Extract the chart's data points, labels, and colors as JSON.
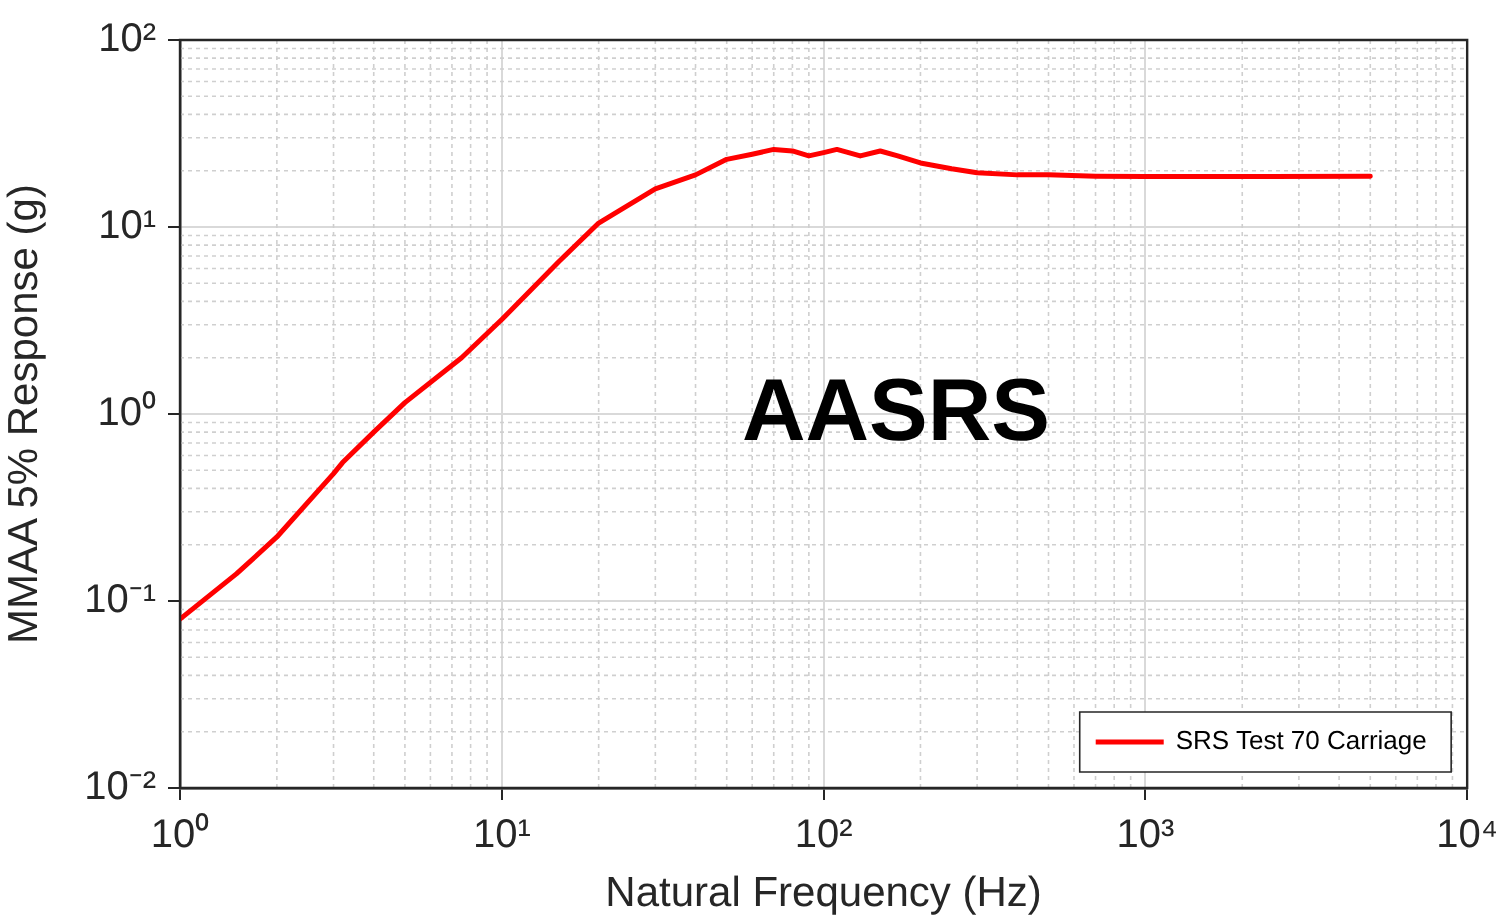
{
  "chart_data": {
    "type": "line",
    "xlabel": "Natural Frequency (Hz)",
    "ylabel": "MMAA 5% Response (g)",
    "annotations": [
      "AASRS"
    ],
    "series": [
      {
        "name": "SRS Test 70 Carriage",
        "color": "#ff0000",
        "x": [
          1,
          1.5,
          2,
          3,
          3.2,
          4,
          5,
          7.5,
          10,
          15,
          20,
          30,
          40,
          50,
          60,
          70,
          80,
          90,
          100,
          110,
          130,
          150,
          170,
          200,
          250,
          300,
          400,
          500,
          700,
          1000,
          2000,
          5000
        ],
        "values": [
          0.08,
          0.14,
          0.22,
          0.48,
          0.55,
          0.8,
          1.15,
          2.0,
          3.2,
          6.5,
          10.5,
          16,
          19,
          23,
          24.5,
          26,
          25.5,
          24,
          25,
          26,
          24,
          25.5,
          24,
          22,
          20.5,
          19.5,
          19,
          19,
          18.7,
          18.6,
          18.6,
          18.7
        ]
      }
    ],
    "log": "xy",
    "xlim": [
      1,
      10000
    ],
    "ylim": [
      0.01,
      100
    ],
    "xticks": [
      {
        "value": 1,
        "label": "10⁰"
      },
      {
        "value": 10,
        "label": "10¹"
      },
      {
        "value": 100,
        "label": "10²"
      },
      {
        "value": 1000,
        "label": "10³"
      },
      {
        "value": 10000,
        "label": "10⁴"
      }
    ],
    "yticks": [
      {
        "value": 0.01,
        "label": "10⁻²"
      },
      {
        "value": 0.1,
        "label": "10⁻¹"
      },
      {
        "value": 1,
        "label": "10⁰"
      },
      {
        "value": 10,
        "label": "10¹"
      },
      {
        "value": 100,
        "label": "10²"
      }
    ],
    "grid": true,
    "legend": "bottom right",
    "marker": "none",
    "line_style": "solid"
  }
}
